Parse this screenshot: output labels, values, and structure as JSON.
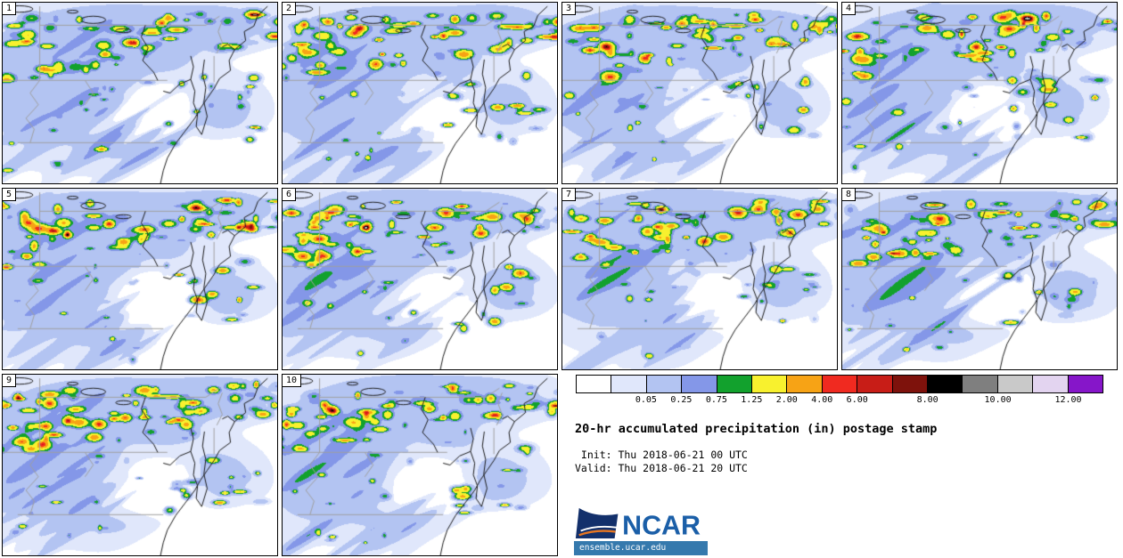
{
  "panels": {
    "members": [
      "1",
      "2",
      "3",
      "4",
      "5",
      "6",
      "7",
      "8",
      "9",
      "10"
    ]
  },
  "colorbar": {
    "segments": [
      {
        "color": "#ffffff",
        "label": ""
      },
      {
        "color": "#e0e7fb",
        "label": "0.05"
      },
      {
        "color": "#b3c4f2",
        "label": "0.25"
      },
      {
        "color": "#8497e8",
        "label": "0.75"
      },
      {
        "color": "#12a12d",
        "label": "1.25"
      },
      {
        "color": "#f8f12e",
        "label": "2.00"
      },
      {
        "color": "#f7a315",
        "label": "4.00"
      },
      {
        "color": "#f02a20",
        "label": "6.00"
      },
      {
        "color": "#c81d17",
        "label": ""
      },
      {
        "color": "#7e120c",
        "label": "8.00"
      },
      {
        "color": "#000000",
        "label": ""
      },
      {
        "color": "#7f7f7f",
        "label": "10.00"
      },
      {
        "color": "#c9c9c9",
        "label": ""
      },
      {
        "color": "#e3d4f0",
        "label": "12.00"
      },
      {
        "color": "#8616c9",
        "label": ""
      }
    ],
    "tick_labels": [
      "0.05",
      "0.25",
      "0.75",
      "1.25",
      "2.00",
      "4.00",
      "6.00",
      "8.00",
      "10.00",
      "12.00"
    ]
  },
  "caption": {
    "title": "20-hr accumulated precipitation (in) postage stamp",
    "init_line": " Init: Thu 2018-06-21 00 UTC",
    "valid_line": "Valid: Thu 2018-06-21 20 UTC"
  },
  "branding": {
    "logo_text": "NCAR",
    "footer_url": "ensemble.ucar.edu",
    "footer_bar_color": "#3579ad",
    "logo_blue": "#1b5fa8",
    "logo_navy": "#13306b",
    "logo_orange": "#e87722"
  },
  "map": {
    "land_color": "#ffffff",
    "state_border_color": "#a0a0a0",
    "coast_color": "#1c1c1c"
  }
}
